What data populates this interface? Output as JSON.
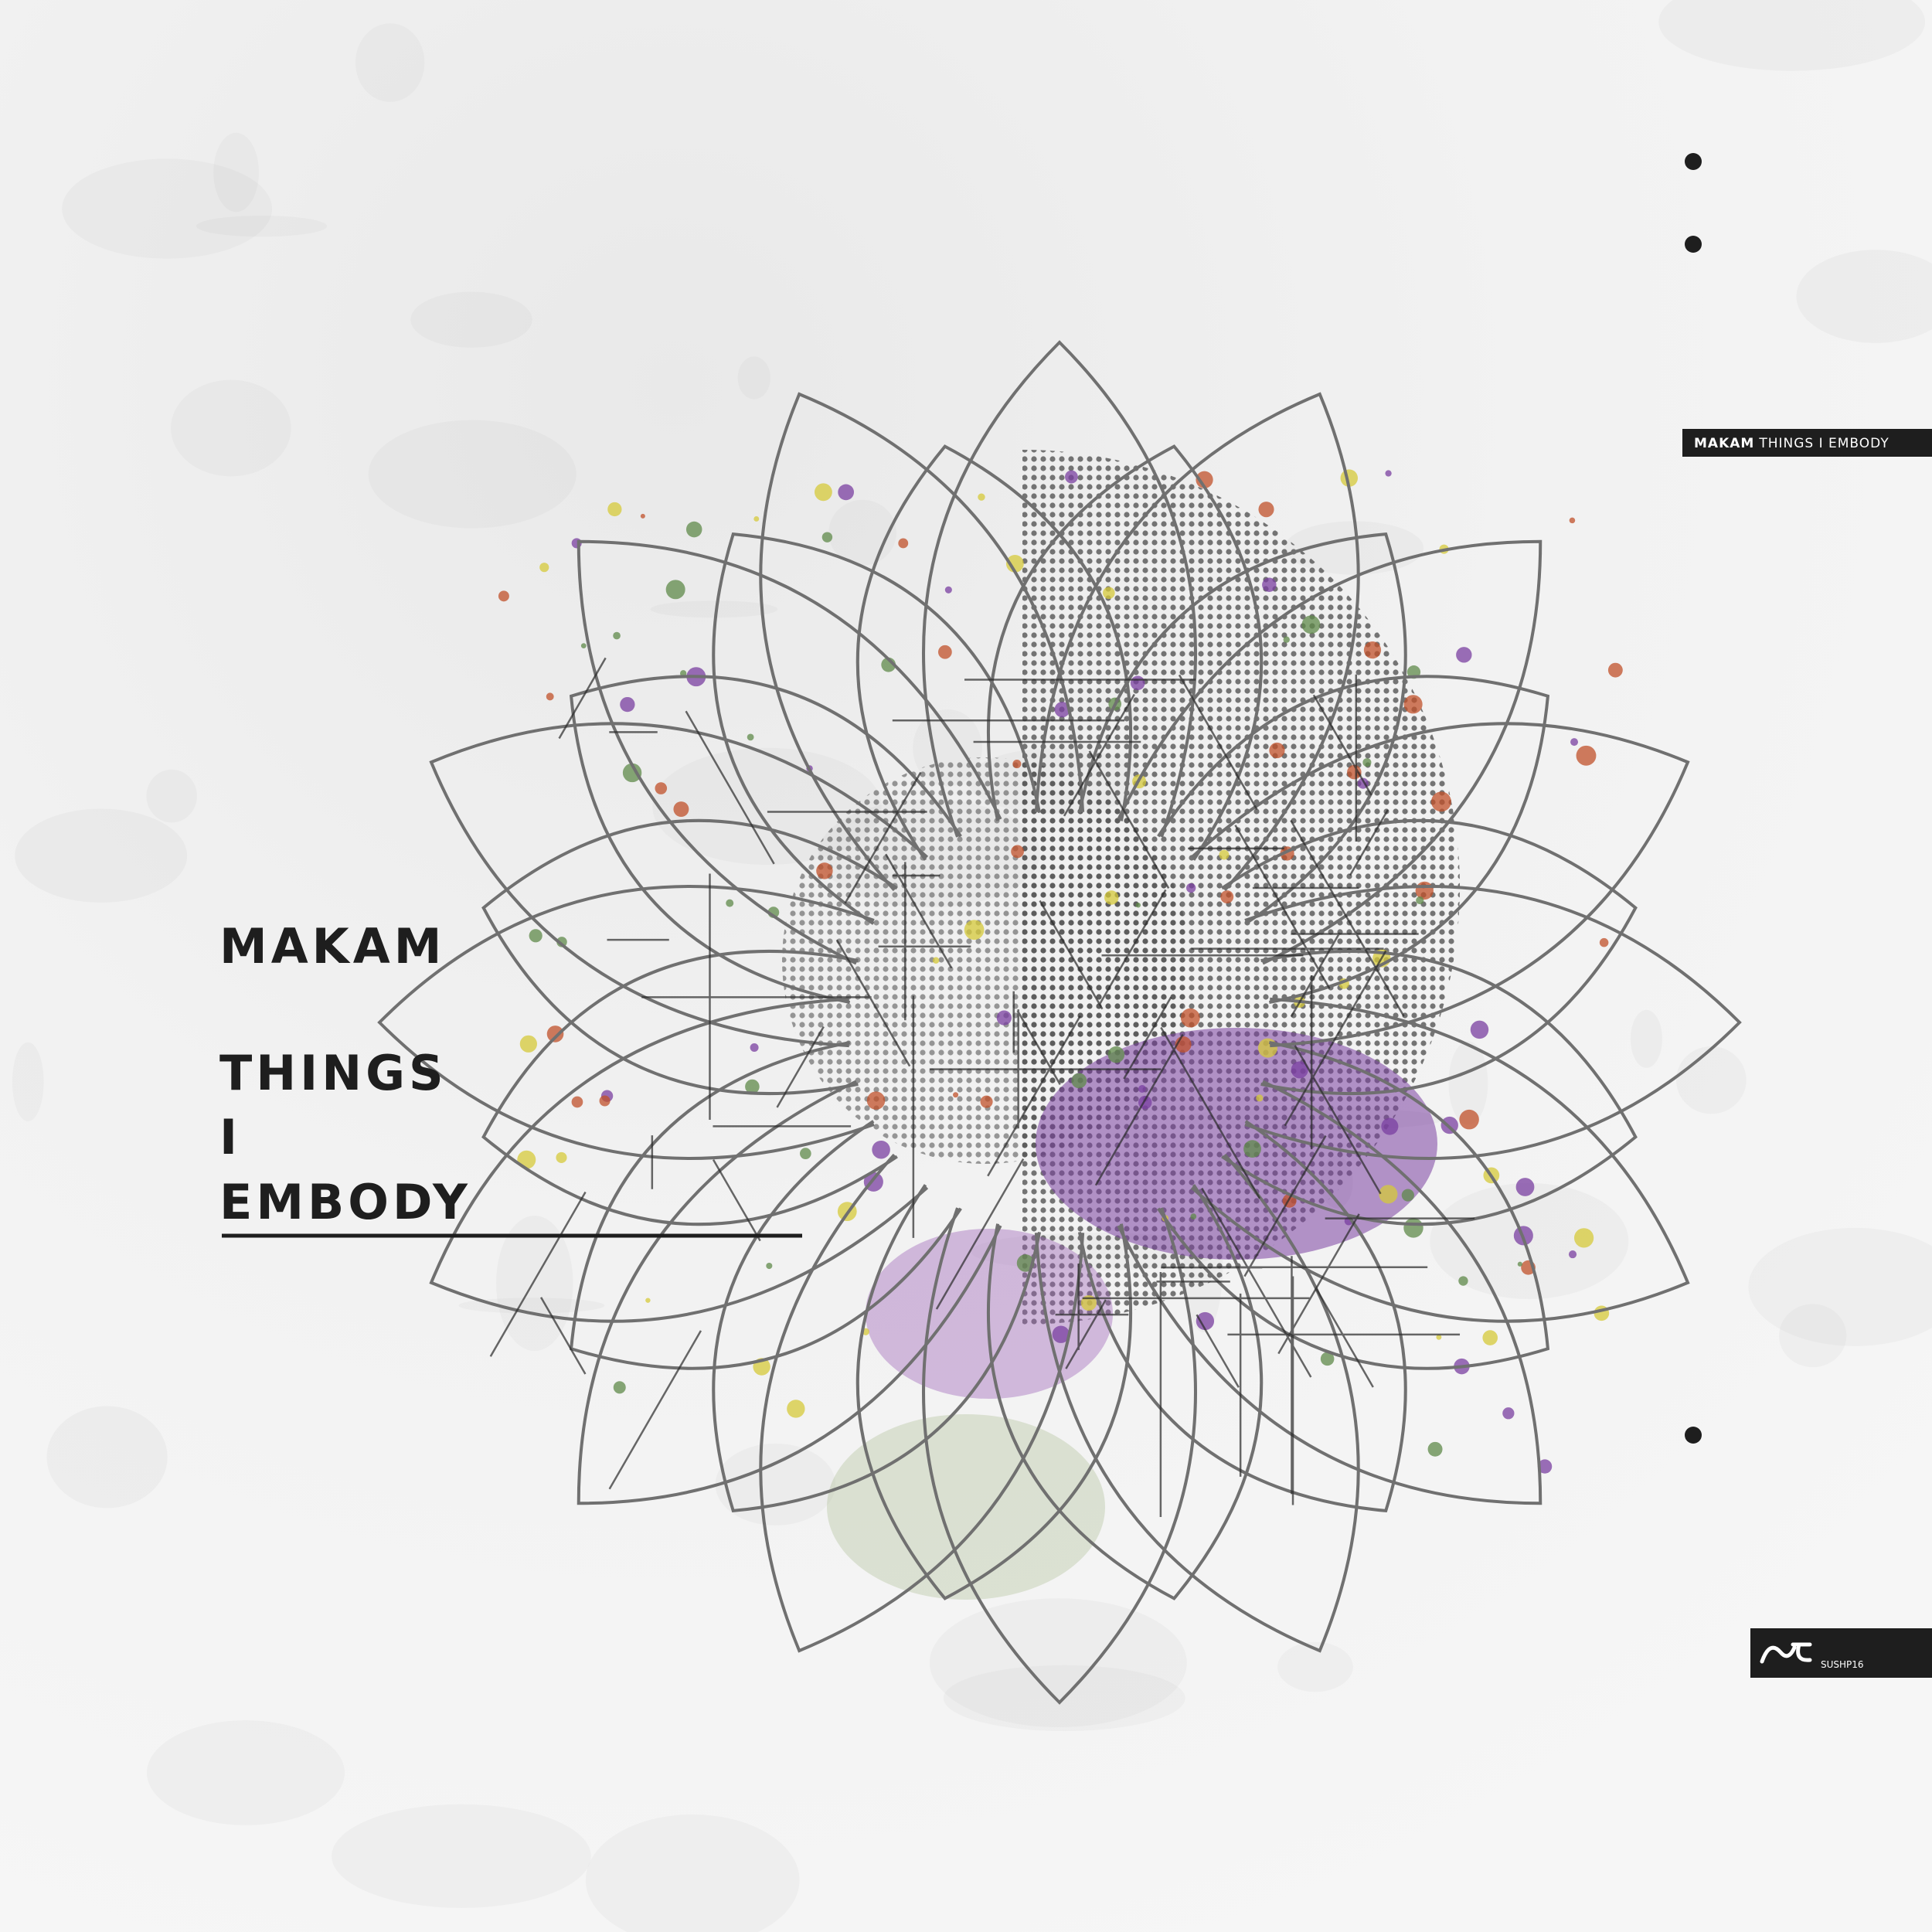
{
  "artist": "MAKAM",
  "title_lines": [
    "THINGS",
    "I",
    "EMBODY"
  ],
  "spine_label": {
    "artist": "MAKAM",
    "title": "THINGS I EMBODY"
  },
  "catalog_number": "SUSHP16"
}
